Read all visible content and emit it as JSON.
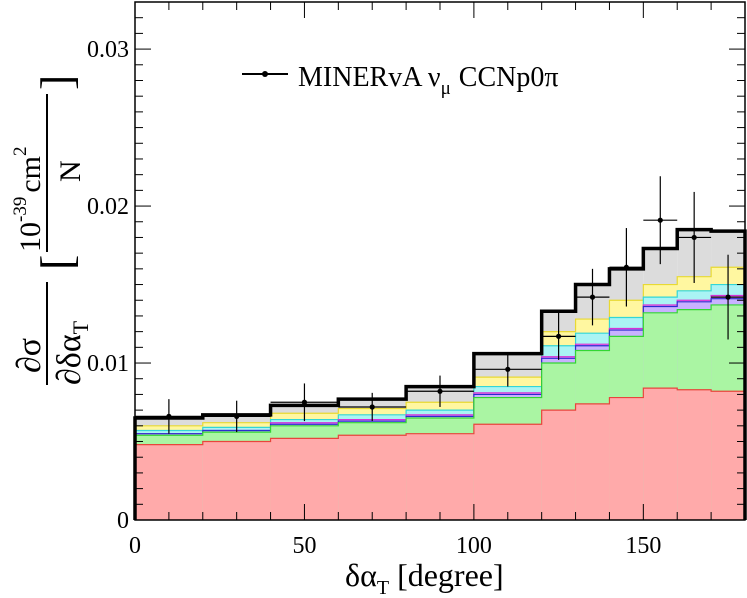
{
  "chart_data": {
    "type": "area",
    "title": "",
    "xlabel_main": "δα",
    "xlabel_sub": "T",
    "xlabel_unit": "[degree]",
    "ylabel": {
      "num": "∂σ",
      "den_main": "∂δα",
      "den_sub": "T",
      "exp": "-39",
      "unit_base": "10",
      "unit_cm": "cm",
      "unit_pow": "2",
      "unit_n": "N"
    },
    "xlim": [
      0,
      180
    ],
    "ylim": [
      0,
      0.033
    ],
    "x_ticks": [
      "0",
      "50",
      "100",
      "150"
    ],
    "x_tick_values": [
      0,
      50,
      100,
      150
    ],
    "y_ticks": [
      "0",
      "0.01",
      "0.02",
      "0.03"
    ],
    "y_tick_values": [
      0,
      0.01,
      0.02,
      0.03
    ],
    "grid": false,
    "legend": {
      "placement": "top-left",
      "entry_prefix": "MINERvA",
      "nu": "ν",
      "mu": "μ",
      "entry_suffix": "CCNp0π"
    },
    "bin_edges": [
      0,
      20,
      40,
      60,
      80,
      100,
      120,
      130,
      140,
      150,
      160,
      170,
      180
    ],
    "stack": [
      {
        "fill": "#ffaaaa",
        "line": "#e8453c",
        "top": [
          0.0048,
          0.005,
          0.0052,
          0.0054,
          0.0055,
          0.0061,
          0.007,
          0.0074,
          0.0078,
          0.0084,
          0.0083,
          0.0082
        ]
      },
      {
        "fill": "#aaf5a3",
        "line": "#33d633",
        "top": [
          0.0054,
          0.0056,
          0.006,
          0.0062,
          0.0065,
          0.0078,
          0.01,
          0.0108,
          0.0117,
          0.0132,
          0.0134,
          0.0137
        ]
      },
      {
        "fill": "#c8b2ff",
        "line": "#2c2cd0",
        "top": [
          0.0055,
          0.0057,
          0.0061,
          0.0063,
          0.0066,
          0.008,
          0.0103,
          0.0111,
          0.0121,
          0.0136,
          0.0139,
          0.0141
        ]
      },
      {
        "fill": "#f29ef2",
        "line": "#d633d6",
        "top": [
          0.0055,
          0.0057,
          0.0062,
          0.0064,
          0.0067,
          0.0081,
          0.0104,
          0.0112,
          0.0122,
          0.0137,
          0.014,
          0.0143
        ]
      },
      {
        "fill": "#aaf4f4",
        "line": "#33d6d6",
        "top": [
          0.0057,
          0.0059,
          0.0064,
          0.0067,
          0.007,
          0.0085,
          0.0111,
          0.0119,
          0.0129,
          0.0142,
          0.0146,
          0.015
        ]
      },
      {
        "fill": "#fff7a0",
        "line": "#e8d933",
        "top": [
          0.006,
          0.0062,
          0.0068,
          0.0071,
          0.0075,
          0.0091,
          0.012,
          0.0128,
          0.014,
          0.015,
          0.0155,
          0.0161
        ]
      },
      {
        "fill": "#dcdcdc",
        "line": "#000000",
        "top": [
          0.0065,
          0.0067,
          0.0073,
          0.0077,
          0.0085,
          0.0106,
          0.0133,
          0.015,
          0.016,
          0.0173,
          0.0185,
          0.0184
        ]
      }
    ],
    "data_points": {
      "x": [
        10,
        30,
        50,
        70,
        90,
        110,
        125,
        135,
        145,
        155,
        165,
        175
      ],
      "xerr": [
        10,
        10,
        10,
        10,
        10,
        10,
        5,
        5,
        5,
        5,
        5,
        5
      ],
      "y": [
        0.0066,
        0.0066,
        0.0075,
        0.0072,
        0.0082,
        0.0096,
        0.0117,
        0.0142,
        0.0161,
        0.0191,
        0.018,
        0.0142
      ],
      "yerr": [
        0.0011,
        0.001,
        0.0012,
        0.0009,
        0.001,
        0.0011,
        0.0015,
        0.0018,
        0.0025,
        0.0028,
        0.0029,
        0.0027
      ]
    },
    "colors": {
      "axis": "#000000",
      "data": "#000000"
    }
  }
}
